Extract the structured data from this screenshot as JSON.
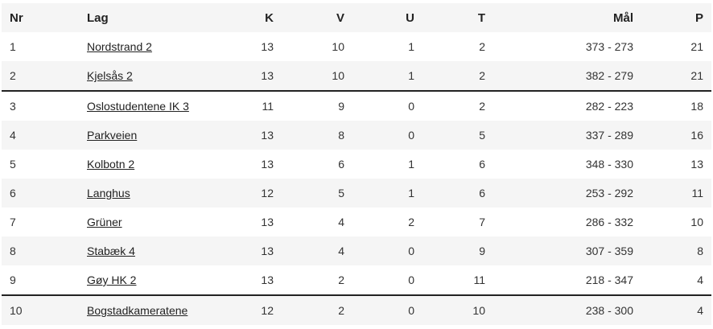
{
  "table": {
    "headers": {
      "nr": "Nr",
      "lag": "Lag",
      "k": "K",
      "v": "V",
      "u": "U",
      "t": "T",
      "mal": "Mål",
      "p": "P"
    },
    "rows": [
      {
        "nr": "1",
        "lag": "Nordstrand 2",
        "k": "13",
        "v": "10",
        "u": "1",
        "t": "2",
        "mal": "373 - 273",
        "p": "21"
      },
      {
        "nr": "2",
        "lag": "Kjelsås 2",
        "k": "13",
        "v": "10",
        "u": "1",
        "t": "2",
        "mal": "382 - 279",
        "p": "21"
      },
      {
        "nr": "3",
        "lag": "Oslostudentene IK 3",
        "k": "11",
        "v": "9",
        "u": "0",
        "t": "2",
        "mal": "282 - 223",
        "p": "18"
      },
      {
        "nr": "4",
        "lag": "Parkveien",
        "k": "13",
        "v": "8",
        "u": "0",
        "t": "5",
        "mal": "337 - 289",
        "p": "16"
      },
      {
        "nr": "5",
        "lag": "Kolbotn 2",
        "k": "13",
        "v": "6",
        "u": "1",
        "t": "6",
        "mal": "348 - 330",
        "p": "13"
      },
      {
        "nr": "6",
        "lag": "Langhus",
        "k": "12",
        "v": "5",
        "u": "1",
        "t": "6",
        "mal": "253 - 292",
        "p": "11"
      },
      {
        "nr": "7",
        "lag": "Grüner",
        "k": "13",
        "v": "4",
        "u": "2",
        "t": "7",
        "mal": "286 - 332",
        "p": "10"
      },
      {
        "nr": "8",
        "lag": "Stabæk 4",
        "k": "13",
        "v": "4",
        "u": "0",
        "t": "9",
        "mal": "307 - 359",
        "p": "8"
      },
      {
        "nr": "9",
        "lag": "Gøy HK 2",
        "k": "13",
        "v": "2",
        "u": "0",
        "t": "11",
        "mal": "218 - 347",
        "p": "4"
      },
      {
        "nr": "10",
        "lag": "Bogstadkameratene",
        "k": "12",
        "v": "2",
        "u": "0",
        "t": "10",
        "mal": "238 - 300",
        "p": "4"
      }
    ]
  }
}
